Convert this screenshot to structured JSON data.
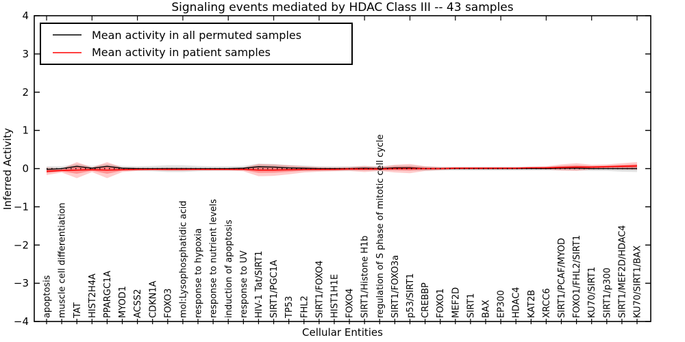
{
  "title": "Signaling events mediated by HDAC Class III -- 43 samples",
  "legend": {
    "items": [
      {
        "label": "Mean activity in all permuted samples",
        "color": "#000000"
      },
      {
        "label": "Mean activity in patient samples",
        "color": "#ff0000"
      }
    ]
  },
  "chart_data": {
    "type": "line",
    "title": "Signaling events mediated by HDAC Class III -- 43 samples",
    "xlabel": "Cellular Entities",
    "ylabel": "Inferred Activity",
    "ylim": [
      -4,
      4
    ],
    "yticks": [
      -4,
      -3,
      -2,
      -1,
      0,
      1,
      2,
      3,
      4
    ],
    "yticklabels": [
      "−4",
      "−3",
      "−2",
      "−1",
      "0",
      "1",
      "2",
      "3",
      "4"
    ],
    "grid": false,
    "legend_position": "upper left",
    "zero_reference_line": {
      "y": 0,
      "style": "dotted",
      "color": "#000000"
    },
    "categories": [
      "apoptosis",
      "muscle cell differentiation",
      "TAT",
      "HIST2H4A",
      "PPARGC1A",
      "MYOD1",
      "ACSS2",
      "CDKN1A",
      "FOXO3",
      "mol:Lysophosphatidic acid",
      "response to hypoxia",
      "response to nutrient levels",
      "induction of apoptosis",
      "response to UV",
      "HIV-1 Tat/SIRT1",
      "SIRT1/PGC1A",
      "TP53",
      "FHL2",
      "SIRT1/FOXO4",
      "HIST1H1E",
      "FOXO4",
      "SIRT1/Histone H1b",
      "regulation of S phase of mitotic cell cycle",
      "SIRT1/FOXO3a",
      "p53/SIRT1",
      "CREBBP",
      "FOXO1",
      "MEF2D",
      "SIRT1",
      "BAX",
      "EP300",
      "HDAC4",
      "KAT2B",
      "XRCC6",
      "SIRT1/PCAF/MYOD",
      "FOXO1/FHL2/SIRT1",
      "KU70/SIRT1",
      "SIRT1/p300",
      "SIRT1/MEF2D/HDAC4",
      "KU70/SIRT1/BAX"
    ],
    "series": [
      {
        "name": "Mean activity in all permuted samples",
        "color": "#000000",
        "values": [
          -0.02,
          0.0,
          0.06,
          0.01,
          0.06,
          0.01,
          0.0,
          0.0,
          0.0,
          0.0,
          0.0,
          0.0,
          0.0,
          0.01,
          0.05,
          0.04,
          0.02,
          0.01,
          0.0,
          0.0,
          0.0,
          0.01,
          0.0,
          0.02,
          0.02,
          0.0,
          0.0,
          0.0,
          0.0,
          0.0,
          0.0,
          0.0,
          0.0,
          0.0,
          0.01,
          0.01,
          0.0,
          0.0,
          0.0,
          0.0
        ],
        "band_halfwidth": [
          0.08,
          0.06,
          0.06,
          0.06,
          0.06,
          0.06,
          0.06,
          0.07,
          0.09,
          0.09,
          0.07,
          0.06,
          0.06,
          0.06,
          0.08,
          0.08,
          0.07,
          0.07,
          0.06,
          0.06,
          0.06,
          0.06,
          0.06,
          0.06,
          0.06,
          0.06,
          0.05,
          0.05,
          0.05,
          0.05,
          0.05,
          0.05,
          0.05,
          0.05,
          0.06,
          0.06,
          0.06,
          0.06,
          0.08,
          0.09
        ],
        "band_color": "#999999"
      },
      {
        "name": "Mean activity in patient samples",
        "color": "#ff0000",
        "values": [
          -0.07,
          -0.05,
          -0.04,
          -0.03,
          -0.04,
          -0.03,
          -0.02,
          -0.02,
          -0.02,
          -0.02,
          -0.02,
          -0.02,
          -0.02,
          -0.02,
          -0.04,
          -0.04,
          -0.03,
          -0.02,
          -0.02,
          -0.02,
          -0.01,
          -0.01,
          -0.01,
          0.0,
          0.0,
          0.0,
          0.0,
          0.01,
          0.01,
          0.01,
          0.01,
          0.01,
          0.02,
          0.02,
          0.03,
          0.04,
          0.04,
          0.05,
          0.06,
          0.07
        ],
        "band_halfwidth": [
          0.1,
          0.05,
          0.21,
          0.06,
          0.21,
          0.06,
          0.04,
          0.03,
          0.04,
          0.04,
          0.03,
          0.03,
          0.03,
          0.05,
          0.16,
          0.15,
          0.12,
          0.08,
          0.06,
          0.05,
          0.05,
          0.08,
          0.05,
          0.1,
          0.12,
          0.06,
          0.04,
          0.03,
          0.03,
          0.03,
          0.03,
          0.03,
          0.03,
          0.04,
          0.08,
          0.1,
          0.06,
          0.06,
          0.08,
          0.1
        ],
        "band_color": "#ff0000"
      }
    ]
  }
}
